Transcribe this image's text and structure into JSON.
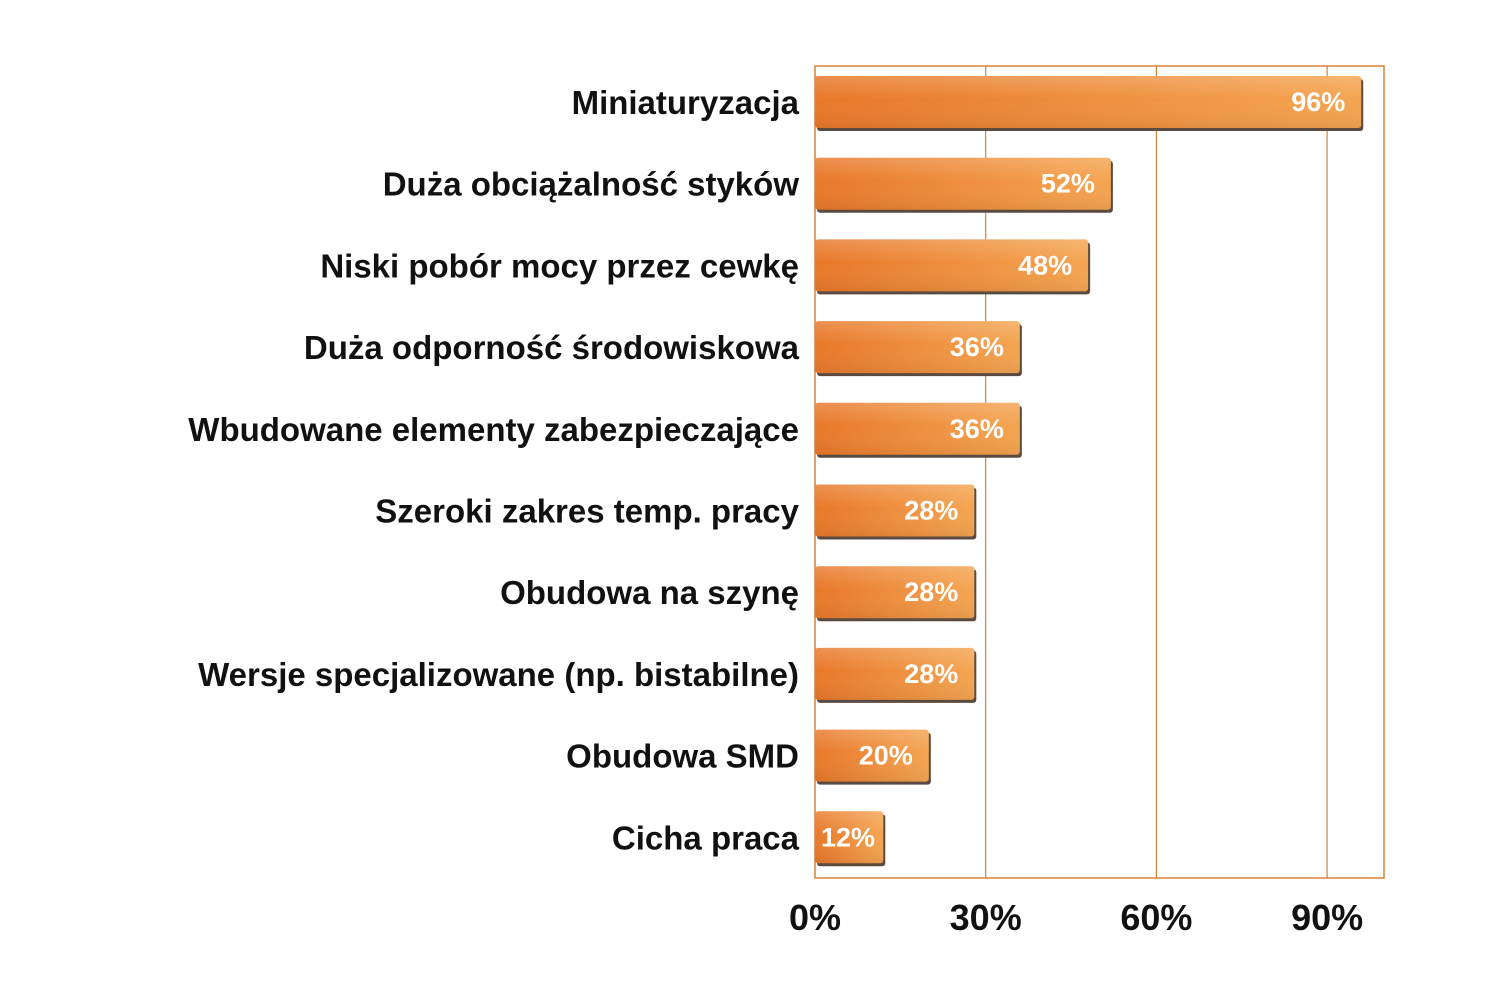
{
  "chart_data": {
    "type": "bar",
    "orientation": "horizontal",
    "categories": [
      "Miniaturyzacja",
      "Duża obciążalność styków",
      "Niski pobór mocy przez cewkę",
      "Duża odporność środowiskowa",
      "Wbudowane elementy zabezpieczające",
      "Szeroki zakres temp. pracy",
      "Obudowa na szynę",
      "Wersje specjalizowane (np. bistabilne)",
      "Obudowa SMD",
      "Cicha praca"
    ],
    "values": [
      96,
      52,
      48,
      36,
      36,
      28,
      28,
      28,
      20,
      12
    ],
    "value_labels": [
      "96%",
      "52%",
      "48%",
      "36%",
      "36%",
      "28%",
      "28%",
      "28%",
      "20%",
      "12%"
    ],
    "title": "",
    "xlabel": "",
    "ylabel": "",
    "xlim": [
      0,
      100
    ],
    "xticks": [
      0,
      30,
      60,
      90
    ],
    "xtick_labels": [
      "0%",
      "30%",
      "60%",
      "90%"
    ],
    "grid": true,
    "legend": "none",
    "colors": {
      "bar_dark": "#e8782a",
      "bar_light": "#f4a552",
      "bar_shadow": "#5a4a40",
      "grid_line": "#d9823a",
      "plot_border": "#d9823a",
      "plot_background": "#ffffff",
      "text": "#111111",
      "value_text": "#ffffff"
    }
  }
}
